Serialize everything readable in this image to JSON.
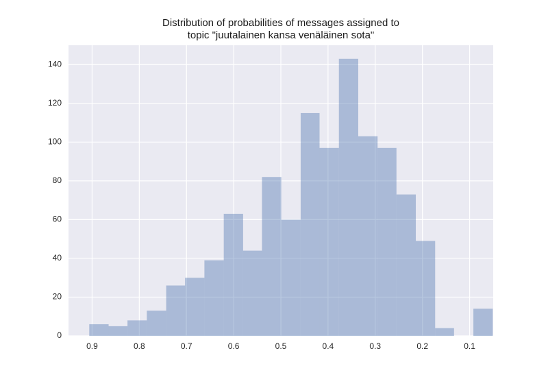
{
  "chart_data": {
    "type": "histogram",
    "title": [
      "Distribution of probabilities of messages assigned to",
      "topic \"juutalainen kansa venäläinen sota\""
    ],
    "bins": [
      0.051,
      0.092,
      0.133,
      0.173,
      0.214,
      0.255,
      0.295,
      0.336,
      0.377,
      0.418,
      0.458,
      0.499,
      0.54,
      0.58,
      0.621,
      0.662,
      0.703,
      0.743,
      0.784,
      0.825,
      0.865,
      0.906
    ],
    "values": [
      14,
      0,
      4,
      49,
      73,
      97,
      103,
      143,
      97,
      115,
      60,
      82,
      44,
      63,
      39,
      30,
      26,
      13,
      8,
      5,
      6
    ],
    "color": "#4c72b0",
    "xlim": [
      0.95,
      0.05
    ],
    "xticks": [
      0.9,
      0.8,
      0.7,
      0.6,
      0.5,
      0.4,
      0.3,
      0.2,
      0.1
    ],
    "ylim": [
      0,
      150
    ],
    "yticks": [
      0,
      20,
      40,
      60,
      80,
      100,
      120,
      140
    ],
    "grid": true
  }
}
